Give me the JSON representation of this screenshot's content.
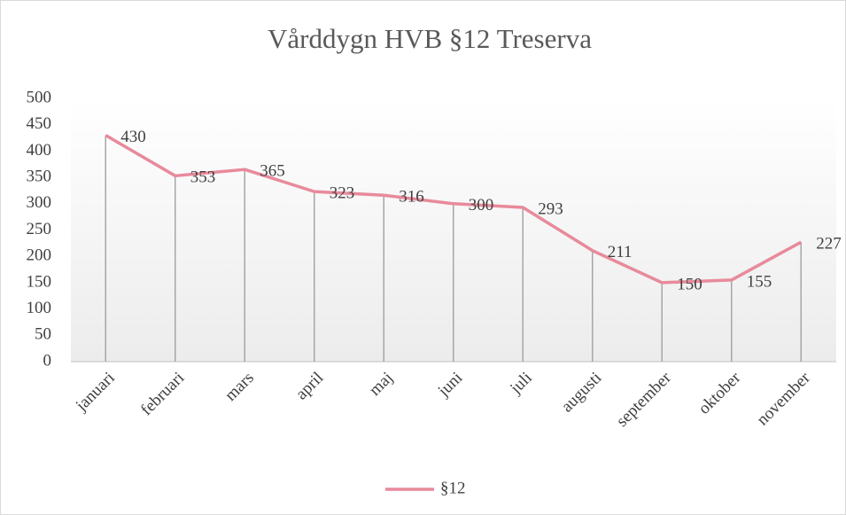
{
  "chart_data": {
    "type": "line",
    "title": "Vårddygn HVB §12 Treserva",
    "categories": [
      "januari",
      "februari",
      "mars",
      "april",
      "maj",
      "juni",
      "juli",
      "augusti",
      "september",
      "oktober",
      "november"
    ],
    "series": [
      {
        "name": "§12",
        "color": "#e88a9b",
        "values": [
          430,
          353,
          365,
          323,
          316,
          300,
          293,
          211,
          150,
          155,
          227
        ]
      }
    ],
    "ylim": [
      0,
      500
    ],
    "yticks": [
      0,
      50,
      100,
      150,
      200,
      250,
      300,
      350,
      400,
      450,
      500
    ],
    "drop_lines": true,
    "data_labels": true,
    "legend": "bottom"
  }
}
